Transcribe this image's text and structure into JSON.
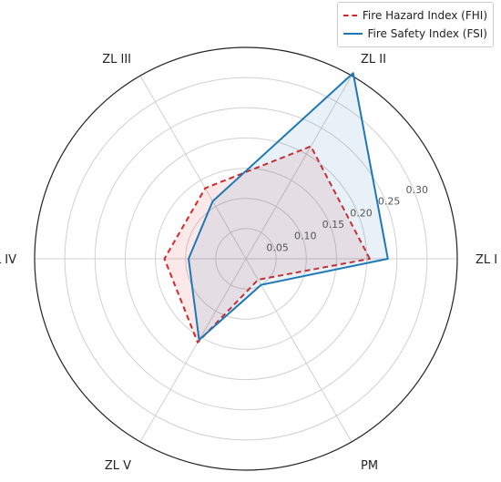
{
  "chart_data": {
    "type": "radar",
    "categories": [
      "ZL I",
      "ZL II",
      "ZL III",
      "ZL IV",
      "ZL V",
      "PM"
    ],
    "radial_ticks": [
      "0.05",
      "0.10",
      "0.15",
      "0.20",
      "0.25",
      "0.30"
    ],
    "radial_range": [
      0,
      0.35
    ],
    "grid": true,
    "legend_position": "top-right",
    "series": [
      {
        "name": "Fire Hazard Index (FHI)",
        "values": [
          0.205,
          0.215,
          0.135,
          0.135,
          0.16,
          0.04
        ],
        "color": "#d62728",
        "line_style": "dashed"
      },
      {
        "name": "Fire Safety Index (FSI)",
        "values": [
          0.235,
          0.355,
          0.11,
          0.095,
          0.155,
          0.05
        ],
        "color": "#1f77b4",
        "line_style": "solid"
      }
    ]
  }
}
